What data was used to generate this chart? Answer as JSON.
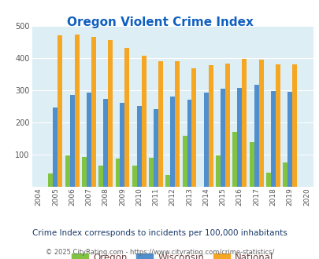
{
  "title": "Oregon Violent Crime Index",
  "years": [
    2004,
    2005,
    2006,
    2007,
    2008,
    2009,
    2010,
    2011,
    2012,
    2013,
    2014,
    2015,
    2016,
    2017,
    2018,
    2019,
    2020
  ],
  "oregon": [
    null,
    40,
    97,
    93,
    65,
    87,
    64,
    90,
    35,
    157,
    null,
    97,
    170,
    138,
    42,
    76,
    null
  ],
  "wisconsin": [
    null,
    245,
    285,
    292,
    273,
    260,
    250,
    240,
    281,
    270,
    292,
    305,
    306,
    317,
    298,
    294,
    null
  ],
  "national": [
    null,
    470,
    473,
    467,
    455,
    432,
    406,
    389,
    389,
    367,
    378,
    383,
    398,
    394,
    381,
    380,
    null
  ],
  "oregon_color": "#82c341",
  "wisconsin_color": "#4f8fce",
  "national_color": "#f5a623",
  "bg_color": "#ddeef4",
  "ylim": [
    0,
    500
  ],
  "yticks": [
    0,
    100,
    200,
    300,
    400,
    500
  ],
  "subtitle": "Crime Index corresponds to incidents per 100,000 inhabitants",
  "footer": "© 2025 CityRating.com - https://www.cityrating.com/crime-statistics/",
  "title_color": "#1060c0",
  "legend_text_color": "#704040",
  "subtitle_color": "#1a3a6a",
  "footer_url_color": "#4080c0",
  "footer_text_color": "#606060",
  "bar_width": 0.28
}
